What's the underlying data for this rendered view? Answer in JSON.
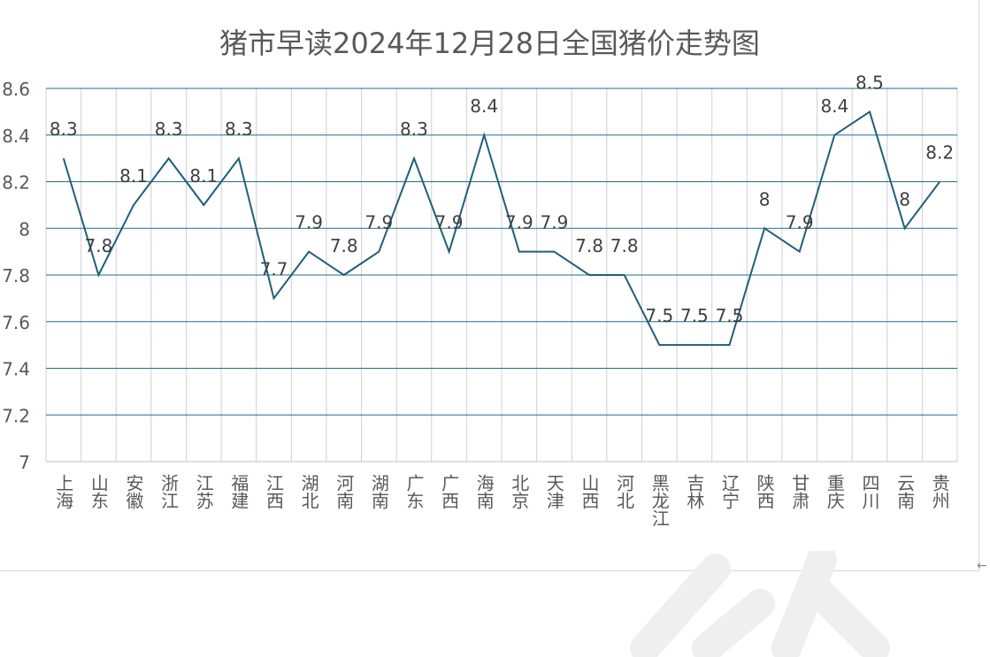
{
  "chart_data": {
    "type": "line",
    "title": "猪市早读2024年12月28日全国猪价走势图",
    "categories": [
      "上海",
      "山东",
      "安徽",
      "浙江",
      "江苏",
      "福建",
      "江西",
      "湖北",
      "河南",
      "湖南",
      "广东",
      "广西",
      "海南",
      "北京",
      "天津",
      "山西",
      "河北",
      "黑龙江",
      "吉林",
      "辽宁",
      "陕西",
      "甘肃",
      "重庆",
      "四川",
      "云南",
      "贵州"
    ],
    "series": [
      {
        "values": [
          8.3,
          7.8,
          8.1,
          8.3,
          8.1,
          8.3,
          7.7,
          7.9,
          7.8,
          7.9,
          8.3,
          7.9,
          8.4,
          7.9,
          7.9,
          7.8,
          7.8,
          7.5,
          7.5,
          7.5,
          8,
          7.9,
          8.4,
          8.5,
          8,
          8.2
        ]
      }
    ],
    "data_labels": [
      "8.3",
      "7.8",
      "8.1",
      "8.3",
      "8.1",
      "8.3",
      "7.7",
      "7.9",
      "7.8",
      "7.9",
      "8.3",
      "7.9",
      "8.4",
      "7.9",
      "7.9",
      "7.8",
      "7.8",
      "7.5",
      "7.5",
      "7.5",
      "8",
      "7.9",
      "8.4",
      "8.5",
      "8",
      "8.2"
    ],
    "ylim": [
      7,
      8.6
    ],
    "yticks": [
      "7",
      "7.2",
      "7.4",
      "7.6",
      "7.8",
      "8",
      "8.2",
      "8.4",
      "8.6"
    ],
    "grid": true,
    "line_color": "#1f5f7a",
    "grid_color": "#1f6f8b",
    "xlabel": "",
    "ylabel": ""
  },
  "corner_glyph": "←"
}
